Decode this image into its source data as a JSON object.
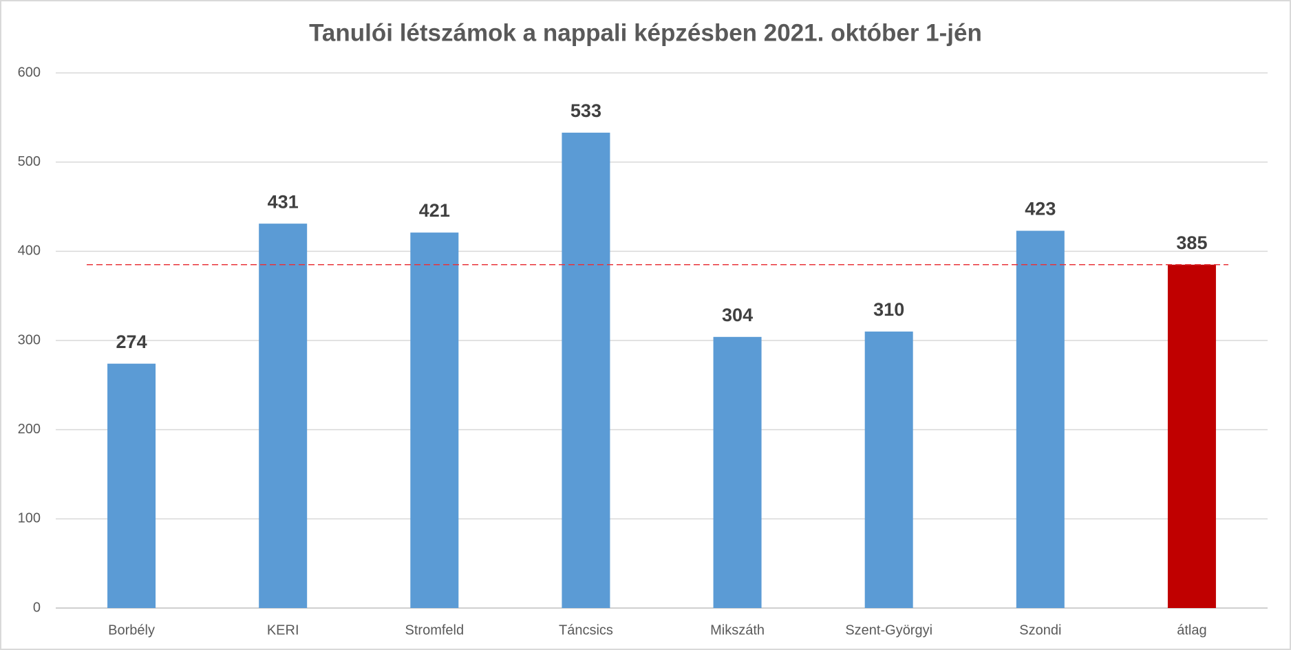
{
  "chart_data": {
    "type": "bar",
    "title": "Tanulói létszámok a nappali képzésben 2021. október 1-jén",
    "categories": [
      "Borbély",
      "KERI",
      "Stromfeld",
      "Táncsics",
      "Mikszáth",
      "Szent-Györgyi",
      "Szondi",
      "átlag"
    ],
    "values": [
      274,
      431,
      421,
      533,
      304,
      310,
      423,
      385
    ],
    "colors": [
      "#5b9bd5",
      "#5b9bd5",
      "#5b9bd5",
      "#5b9bd5",
      "#5b9bd5",
      "#5b9bd5",
      "#5b9bd5",
      "#c00000"
    ],
    "ylim": [
      0,
      600
    ],
    "yticks": [
      0,
      100,
      200,
      300,
      400,
      500,
      600
    ],
    "grid": true,
    "reference_line": {
      "value": 385,
      "color": "#e8333a",
      "dashed": true
    }
  }
}
